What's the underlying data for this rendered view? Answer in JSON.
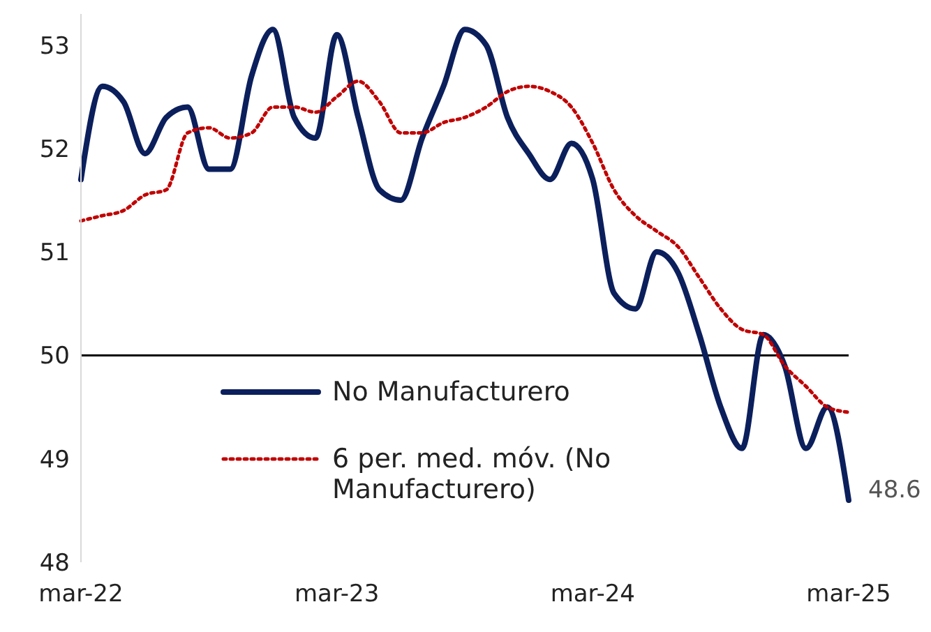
{
  "chart_data": {
    "type": "line",
    "categories": [
      "mar-22",
      null,
      null,
      null,
      null,
      null,
      null,
      null,
      null,
      null,
      null,
      null,
      "mar-23",
      null,
      null,
      null,
      null,
      null,
      null,
      null,
      null,
      null,
      null,
      null,
      "mar-24",
      null,
      null,
      null,
      null,
      null,
      null,
      null,
      null,
      null,
      null,
      null,
      "mar-25"
    ],
    "series": [
      {
        "name": "No Manufacturero",
        "color": "#0b1f5c",
        "line_style": "solid",
        "values": [
          51.7,
          52.6,
          52.45,
          51.95,
          52.3,
          52.4,
          51.8,
          51.8,
          52.7,
          53.15,
          52.3,
          52.1,
          53.1,
          52.3,
          51.6,
          51.5,
          52.1,
          52.6,
          53.15,
          53.0,
          52.3,
          51.95,
          51.7,
          52.05,
          51.7,
          50.6,
          50.45,
          51.0,
          50.8,
          50.2,
          49.5,
          49.1,
          50.2,
          49.9,
          49.1,
          49.5,
          48.6
        ],
        "value_labels": [
          null,
          null,
          null,
          null,
          null,
          null,
          null,
          null,
          null,
          null,
          null,
          null,
          null,
          null,
          null,
          null,
          null,
          null,
          null,
          null,
          null,
          null,
          null,
          null,
          null,
          null,
          null,
          null,
          null,
          null,
          null,
          null,
          null,
          null,
          null,
          null,
          "48.6"
        ]
      },
      {
        "name": "6 per. med. móv. (No Manufacturero)",
        "color": "#c00000",
        "line_style": "dotted",
        "values": [
          51.3,
          51.35,
          51.4,
          51.55,
          51.6,
          52.15,
          52.2,
          52.1,
          52.15,
          52.4,
          52.4,
          52.35,
          52.5,
          52.65,
          52.45,
          52.15,
          52.15,
          52.25,
          52.3,
          52.4,
          52.55,
          52.6,
          52.55,
          52.4,
          52.05,
          51.6,
          51.35,
          51.2,
          51.05,
          50.75,
          50.45,
          50.25,
          50.2,
          49.9,
          49.7,
          49.5,
          49.45
        ]
      }
    ],
    "ylim": [
      48,
      53.3
    ],
    "yticks": [
      48,
      49,
      50,
      51,
      52,
      53
    ],
    "grid": false,
    "legend": "bottom",
    "marker": "none",
    "ref_lines": [
      {
        "axis": "y",
        "value": 50,
        "color": "#000000"
      }
    ]
  }
}
